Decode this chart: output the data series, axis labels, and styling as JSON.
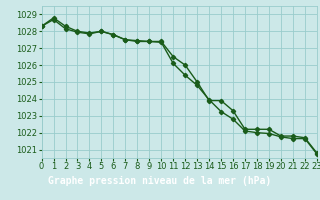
{
  "title": "Graphe pression niveau de la mer (hPa)",
  "xlim": [
    0,
    23
  ],
  "ylim": [
    1020.5,
    1029.5
  ],
  "yticks": [
    1021,
    1022,
    1023,
    1024,
    1025,
    1026,
    1027,
    1028,
    1029
  ],
  "xticks": [
    0,
    1,
    2,
    3,
    4,
    5,
    6,
    7,
    8,
    9,
    10,
    11,
    12,
    13,
    14,
    15,
    16,
    17,
    18,
    19,
    20,
    21,
    22,
    23
  ],
  "series1_x": [
    0,
    1,
    2,
    3,
    4,
    5,
    6,
    7,
    8,
    9,
    10,
    11,
    12,
    13,
    14,
    15,
    16,
    17,
    18,
    19,
    20,
    21,
    22,
    23
  ],
  "series1_y": [
    1028.3,
    1028.8,
    1028.3,
    1028.0,
    1027.9,
    1028.0,
    1027.8,
    1027.5,
    1027.4,
    1027.4,
    1027.4,
    1026.5,
    1026.0,
    1025.0,
    1023.9,
    1023.9,
    1023.3,
    1022.2,
    1022.2,
    1022.2,
    1021.8,
    1021.8,
    1021.7,
    1020.8
  ],
  "series2_x": [
    0,
    1,
    2,
    3,
    4,
    5,
    6,
    7,
    8,
    9,
    10,
    11,
    12,
    13,
    14,
    15,
    16,
    17,
    18,
    19,
    20,
    21,
    22,
    23
  ],
  "series2_y": [
    1028.3,
    1028.7,
    1028.15,
    1027.95,
    1027.85,
    1028.0,
    1027.8,
    1027.5,
    1027.45,
    1027.4,
    1027.35,
    1026.1,
    1025.4,
    1024.8,
    1023.95,
    1023.25,
    1022.8,
    1022.1,
    1022.0,
    1021.95,
    1021.75,
    1021.65,
    1021.65,
    1020.75
  ],
  "line_color": "#1a5c1a",
  "bg_color": "#cce8e8",
  "grid_color": "#99cccc",
  "title_bg": "#2d7a2d",
  "title_fg": "#ffffff",
  "title_fontsize": 7.0,
  "tick_fontsize": 6.0
}
